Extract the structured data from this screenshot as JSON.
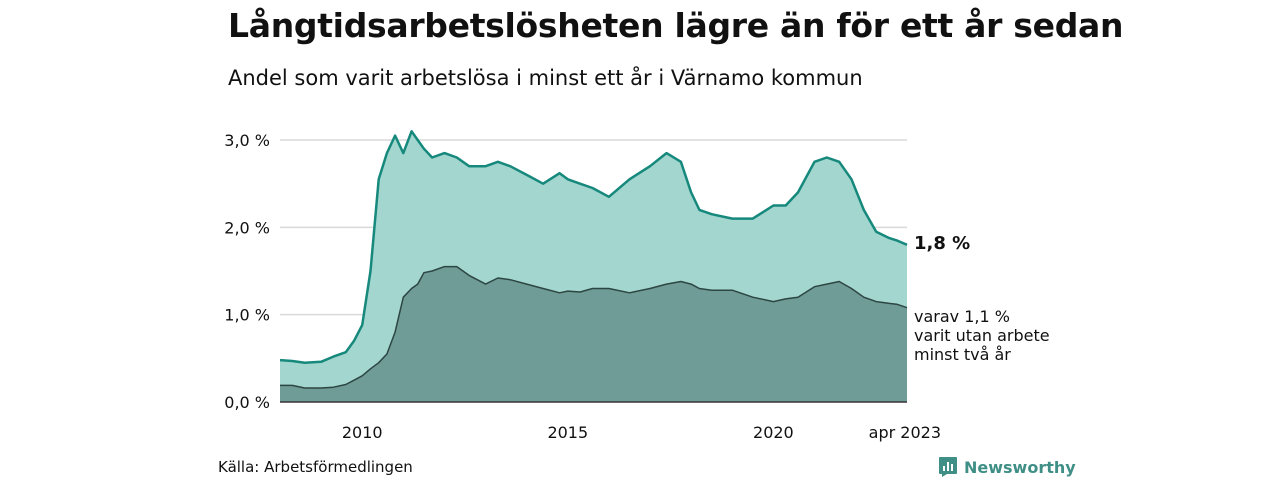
{
  "title": "Långtidsarbetslösheten lägre än för ett år sedan",
  "subtitle": "Andel som varit arbetslösa i minst ett år i Värnamo kommun",
  "source": "Källa: Arbetsförmedlingen",
  "brand": "Newsworthy",
  "colors": {
    "area_total": "#a3d6cf",
    "line_total": "#16897c",
    "area_sub": "#6f9c97",
    "line_sub": "#2d4643",
    "grid": "#d9d9d9",
    "baseline": "#333333",
    "brand": "#3f8f86"
  },
  "chart_data": {
    "type": "area",
    "title": "Andel som varit arbetslösa i minst ett år i Värnamo kommun",
    "xlabel": "",
    "ylabel": "",
    "x_range": [
      2008.0,
      2023.25
    ],
    "ylim": [
      0,
      3.0
    ],
    "y_ticks": [
      0,
      1,
      2,
      3
    ],
    "y_tick_labels": [
      "0,0 %",
      "1,0 %",
      "2,0 %",
      "3,0 %"
    ],
    "x_ticks": [
      2010,
      2015,
      2020,
      2023.25
    ],
    "x_tick_labels": [
      "2010",
      "2015",
      "2020",
      "apr 2023"
    ],
    "grid": true,
    "series": [
      {
        "key": "total",
        "x": [
          2008.0,
          2008.3,
          2008.6,
          2009.0,
          2009.3,
          2009.6,
          2009.8,
          2010.0,
          2010.2,
          2010.4,
          2010.6,
          2010.8,
          2011.0,
          2011.2,
          2011.35,
          2011.5,
          2011.7,
          2012.0,
          2012.3,
          2012.6,
          2013.0,
          2013.3,
          2013.6,
          2014.0,
          2014.4,
          2014.8,
          2015.0,
          2015.3,
          2015.6,
          2016.0,
          2016.5,
          2017.0,
          2017.4,
          2017.75,
          2018.0,
          2018.2,
          2018.5,
          2019.0,
          2019.5,
          2020.0,
          2020.3,
          2020.6,
          2021.0,
          2021.3,
          2021.6,
          2021.9,
          2022.2,
          2022.5,
          2022.8,
          2023.0,
          2023.25
        ],
        "y": [
          0.48,
          0.47,
          0.45,
          0.46,
          0.52,
          0.57,
          0.7,
          0.88,
          1.5,
          2.55,
          2.85,
          3.05,
          2.85,
          3.1,
          3.0,
          2.9,
          2.8,
          2.85,
          2.8,
          2.7,
          2.7,
          2.75,
          2.7,
          2.6,
          2.5,
          2.62,
          2.55,
          2.5,
          2.45,
          2.35,
          2.55,
          2.7,
          2.85,
          2.75,
          2.4,
          2.2,
          2.15,
          2.1,
          2.1,
          2.25,
          2.25,
          2.4,
          2.75,
          2.8,
          2.75,
          2.55,
          2.2,
          1.95,
          1.88,
          1.85,
          1.8
        ]
      },
      {
        "key": "sub",
        "x": [
          2008.0,
          2008.3,
          2008.6,
          2009.0,
          2009.3,
          2009.6,
          2009.8,
          2010.0,
          2010.2,
          2010.4,
          2010.6,
          2010.8,
          2011.0,
          2011.2,
          2011.35,
          2011.5,
          2011.7,
          2012.0,
          2012.3,
          2012.6,
          2013.0,
          2013.3,
          2013.6,
          2014.0,
          2014.4,
          2014.8,
          2015.0,
          2015.3,
          2015.6,
          2016.0,
          2016.5,
          2017.0,
          2017.4,
          2017.75,
          2018.0,
          2018.2,
          2018.5,
          2019.0,
          2019.5,
          2020.0,
          2020.3,
          2020.6,
          2021.0,
          2021.3,
          2021.6,
          2021.9,
          2022.2,
          2022.5,
          2022.8,
          2023.0,
          2023.25
        ],
        "y": [
          0.19,
          0.19,
          0.16,
          0.16,
          0.17,
          0.2,
          0.25,
          0.3,
          0.38,
          0.45,
          0.55,
          0.8,
          1.2,
          1.3,
          1.35,
          1.48,
          1.5,
          1.55,
          1.55,
          1.45,
          1.35,
          1.42,
          1.4,
          1.35,
          1.3,
          1.25,
          1.27,
          1.26,
          1.3,
          1.3,
          1.25,
          1.3,
          1.35,
          1.38,
          1.35,
          1.3,
          1.28,
          1.28,
          1.2,
          1.15,
          1.18,
          1.2,
          1.32,
          1.35,
          1.38,
          1.3,
          1.2,
          1.15,
          1.13,
          1.12,
          1.08
        ]
      }
    ],
    "annotations": {
      "total_end": "1,8 %",
      "sub_end_lines": [
        "varav 1,1 %",
        "varit utan arbete",
        "minst två år"
      ]
    }
  }
}
